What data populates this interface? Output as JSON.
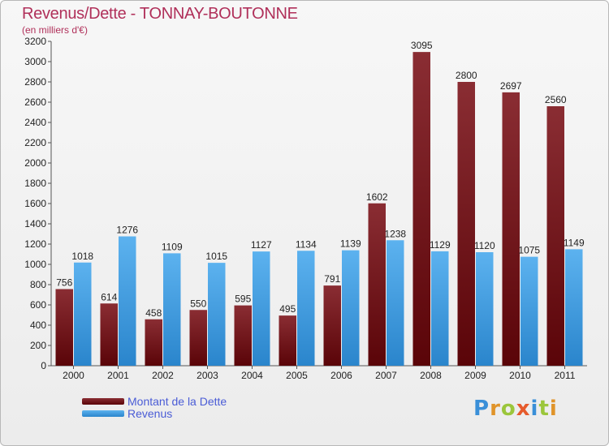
{
  "chart_data": {
    "type": "bar",
    "title": "Revenus/Dette - TONNAY-BOUTONNE",
    "subtitle": "(en milliers d'€)",
    "xlabel": "",
    "ylabel": "",
    "categories": [
      "2000",
      "2001",
      "2002",
      "2003",
      "2004",
      "2005",
      "2006",
      "2007",
      "2008",
      "2009",
      "2010",
      "2011"
    ],
    "series": [
      {
        "name": "Montant de la Dette",
        "color": "#6e1418",
        "values": [
          756,
          614,
          458,
          550,
          595,
          495,
          791,
          1602,
          3095,
          2800,
          2697,
          2560
        ]
      },
      {
        "name": "Revenus",
        "color": "#3a9be0",
        "values": [
          1018,
          1276,
          1109,
          1015,
          1127,
          1134,
          1139,
          1238,
          1129,
          1120,
          1075,
          1149
        ]
      }
    ],
    "ylim": [
      0,
      3200
    ],
    "yticks": [
      0,
      200,
      400,
      600,
      800,
      1000,
      1200,
      1400,
      1600,
      1800,
      2000,
      2200,
      2400,
      2600,
      2800,
      3000,
      3200
    ],
    "grid": false,
    "legend_position": "bottom-left"
  },
  "logo": {
    "text": "Proxiti",
    "letters": [
      "P",
      "r",
      "o",
      "x",
      "i",
      "t",
      "i"
    ],
    "colors": [
      "#3a8fd8",
      "#e0942a",
      "#9bc63b",
      "#e65b2c",
      "#3a8fd8",
      "#9bc63b",
      "#e0942a"
    ]
  }
}
